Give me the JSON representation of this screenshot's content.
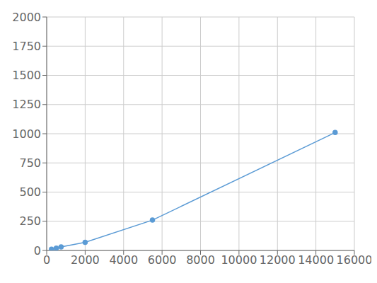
{
  "chart_data": {
    "type": "line",
    "x": [
      250,
      500,
      750,
      2000,
      5500,
      15000
    ],
    "values": [
      10,
      20,
      30,
      70,
      260,
      1010
    ],
    "color": "#5b9bd5",
    "marker": "circle",
    "xlim": [
      0,
      16000
    ],
    "ylim": [
      0,
      2000
    ],
    "xticks": [
      0,
      2000,
      4000,
      6000,
      8000,
      10000,
      12000,
      14000,
      16000
    ],
    "yticks": [
      0,
      250,
      500,
      750,
      1000,
      1250,
      1500,
      1750,
      2000
    ],
    "grid": true
  }
}
